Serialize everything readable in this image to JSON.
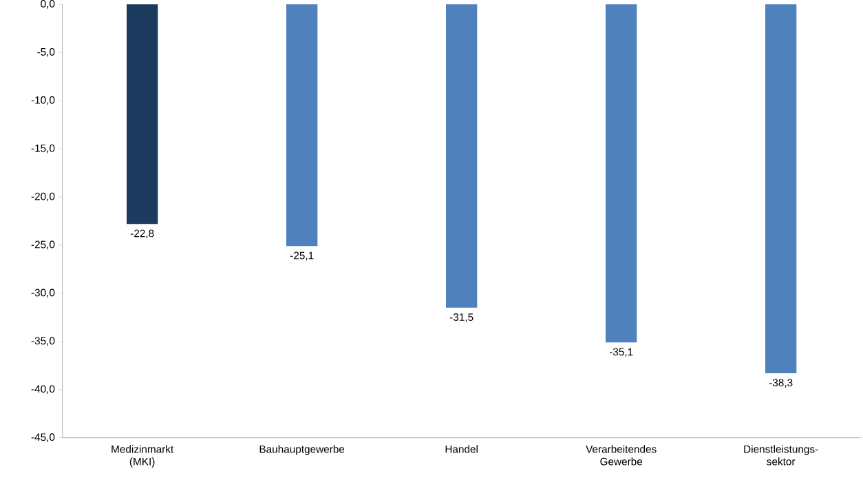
{
  "chart_data": {
    "type": "bar",
    "categories": [
      "Medizinmarkt (MKI)",
      "Bauhauptgewerbe",
      "Handel",
      "Verarbeitendes Gewerbe",
      "Dienstleistungs-sektor"
    ],
    "values": [
      -22.8,
      -25.1,
      -31.5,
      -35.1,
      -38.3
    ],
    "value_labels": [
      "-22,8",
      "-25,1",
      "-31,5",
      "-35,1",
      "-38,3"
    ],
    "colors": [
      "#1b3a5e",
      "#4f81bd",
      "#4f81bd",
      "#4f81bd",
      "#4f81bd"
    ],
    "ylim": [
      -45,
      0
    ],
    "yticks": [
      {
        "value": 0,
        "label": "0,0"
      },
      {
        "value": -5,
        "label": "-5,0"
      },
      {
        "value": -10,
        "label": "-10,0"
      },
      {
        "value": -15,
        "label": "-15,0"
      },
      {
        "value": -20,
        "label": "-20,0"
      },
      {
        "value": -25,
        "label": "-25,0"
      },
      {
        "value": -30,
        "label": "-30,0"
      },
      {
        "value": -35,
        "label": "-35,0"
      },
      {
        "value": -40,
        "label": "-40,0"
      },
      {
        "value": -45,
        "label": "-45,0"
      }
    ],
    "grid": false
  }
}
